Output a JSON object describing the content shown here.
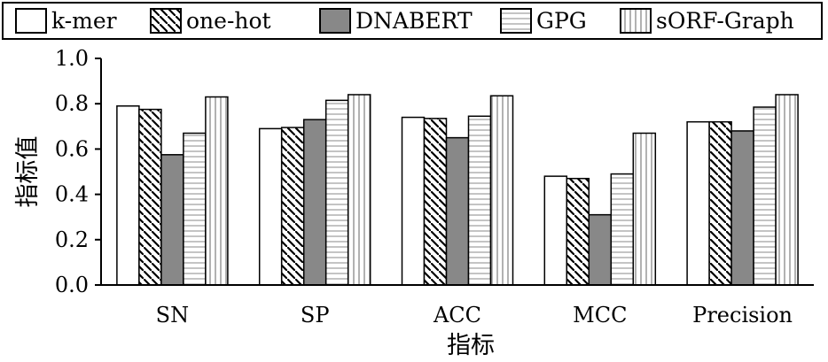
{
  "chart_data": {
    "type": "bar",
    "title": "",
    "xlabel": "指标",
    "ylabel": "指标值",
    "ylim": [
      0,
      1.0
    ],
    "yticks": [
      "0.0",
      "0.2",
      "0.4",
      "0.6",
      "0.8",
      "1.0"
    ],
    "grid": false,
    "legend_position": "top",
    "categories": [
      "SN",
      "SP",
      "ACC",
      "MCC",
      "Precision"
    ],
    "series": [
      {
        "name": "k-mer",
        "values": [
          0.79,
          0.69,
          0.74,
          0.48,
          0.72
        ],
        "pattern": "solid-white",
        "color": "#ffffff"
      },
      {
        "name": "one-hot",
        "values": [
          0.775,
          0.695,
          0.735,
          0.47,
          0.72
        ],
        "pattern": "diagonal-hatch",
        "color": "#ffffff"
      },
      {
        "name": "DNABERT",
        "values": [
          0.575,
          0.73,
          0.65,
          0.31,
          0.68
        ],
        "pattern": "solid-gray",
        "color": "#888888"
      },
      {
        "name": "GPG",
        "values": [
          0.67,
          0.815,
          0.745,
          0.49,
          0.785
        ],
        "pattern": "horizontal-lines",
        "color": "#ffffff"
      },
      {
        "name": "sORF-Graph",
        "values": [
          0.83,
          0.84,
          0.835,
          0.67,
          0.84
        ],
        "pattern": "vertical-lines",
        "color": "#ffffff"
      }
    ]
  }
}
